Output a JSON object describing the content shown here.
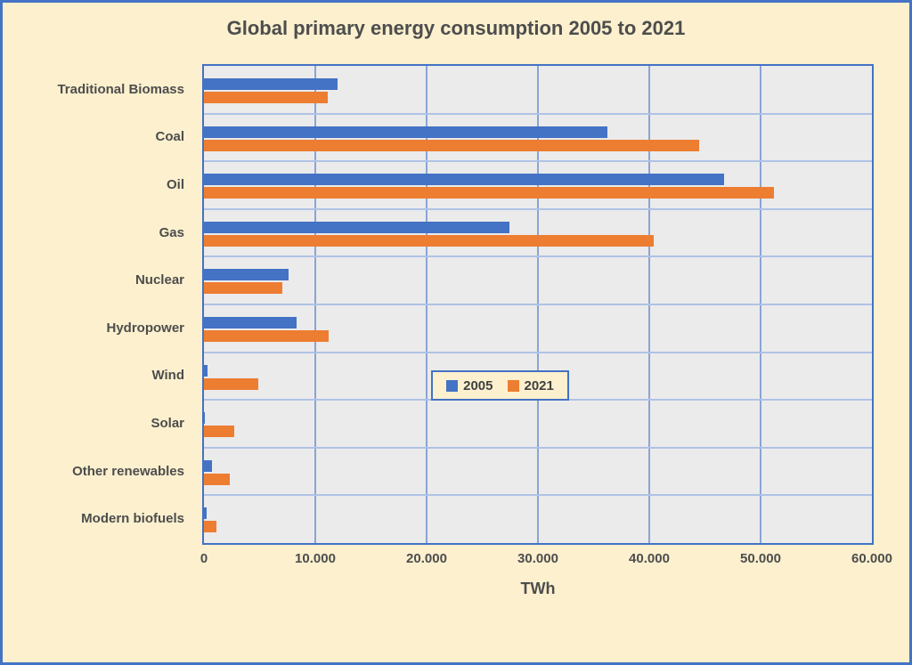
{
  "title": "Global primary energy consumption 2005 to 2021",
  "chart_data": {
    "type": "bar",
    "orientation": "horizontal",
    "title": "Global primary energy consumption 2005 to 2021",
    "xlabel": "TWh",
    "unit": "TWh",
    "xlim": [
      0,
      60000
    ],
    "xticks": [
      0,
      10000,
      20000,
      30000,
      40000,
      50000,
      60000
    ],
    "xtick_labels": [
      "0",
      "10.000",
      "20.000",
      "30.000",
      "40.000",
      "50.000",
      "60.000"
    ],
    "grid": true,
    "legend_position": "inside-center",
    "categories": [
      "Traditional Biomass",
      "Coal",
      "Oil",
      "Gas",
      "Nuclear",
      "Hydropower",
      "Wind",
      "Solar",
      "Other renewables",
      "Modern biofuels"
    ],
    "series": [
      {
        "name": "2005",
        "color": "#4472C4",
        "values": [
          12000,
          36200,
          46700,
          27400,
          7600,
          8300,
          300,
          50,
          700,
          250
        ]
      },
      {
        "name": "2021",
        "color": "#ED7D31",
        "values": [
          11100,
          44500,
          51200,
          40400,
          7000,
          11200,
          4900,
          2700,
          2350,
          1100
        ]
      }
    ]
  },
  "legend": {
    "items": [
      {
        "label": "2005",
        "color": "#4472C4"
      },
      {
        "label": "2021",
        "color": "#ED7D31"
      }
    ]
  },
  "colors": {
    "background": "#FCF0CE",
    "frame_border": "#4472C4",
    "plot_background": "#EBEBEB",
    "plot_border": "#4472C4",
    "gridline_vertical": "#8AA4D6",
    "gridline_horizontal": "#AFC2E6",
    "text": "#4D4D4D"
  }
}
